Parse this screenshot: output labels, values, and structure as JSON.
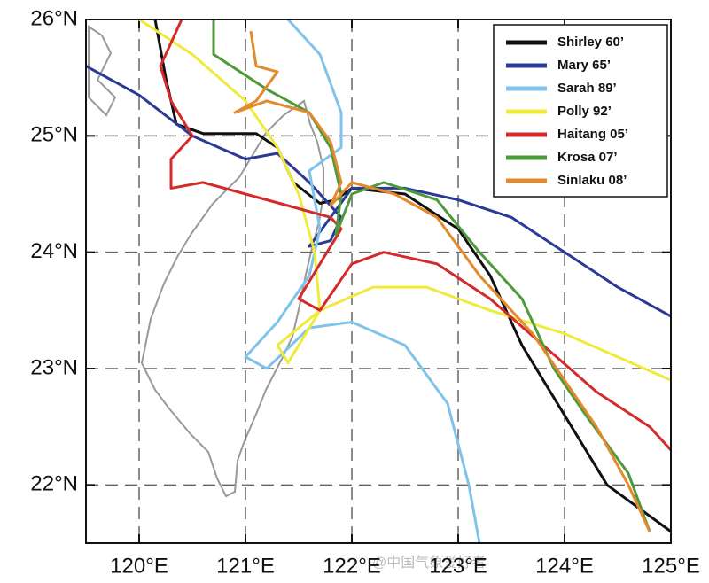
{
  "chart_data": {
    "type": "line",
    "xlim": [
      119.5,
      125
    ],
    "ylim": [
      21.5,
      26
    ],
    "xticks": [
      {
        "value": 120,
        "label": "120°E"
      },
      {
        "value": 121,
        "label": "121°E"
      },
      {
        "value": 122,
        "label": "122°E"
      },
      {
        "value": 123,
        "label": "123°E"
      },
      {
        "value": 124,
        "label": "124°E"
      },
      {
        "value": 125,
        "label": "125°E"
      }
    ],
    "yticks": [
      {
        "value": 22,
        "label": "22°N"
      },
      {
        "value": 23,
        "label": "23°N"
      },
      {
        "value": 24,
        "label": "24°N"
      },
      {
        "value": 25,
        "label": "25°N"
      },
      {
        "value": 26,
        "label": "26°N"
      }
    ],
    "grid": true,
    "legend": "upper right",
    "watermark": "@中国气象爱好者",
    "series": [
      {
        "name": "Shirley 60’",
        "color": "#111111",
        "x": [
          120.15,
          120.25,
          120.35,
          120.6,
          121.1,
          121.3,
          121.45,
          121.7,
          121.85,
          122.0,
          122.5,
          123.0,
          123.3,
          123.6,
          124.0,
          124.4,
          125.0
        ],
        "values": [
          26.0,
          25.5,
          25.1,
          25.02,
          25.02,
          24.9,
          24.6,
          24.42,
          24.45,
          24.55,
          24.5,
          24.2,
          23.8,
          23.2,
          22.6,
          22.0,
          21.6
        ]
      },
      {
        "name": "Mary 65’",
        "color": "#2b3a96",
        "x": [
          119.5,
          120.0,
          120.5,
          121.0,
          121.3,
          121.6,
          121.9,
          121.8,
          121.6,
          121.8,
          122.0,
          122.5,
          123.0,
          123.5,
          124.0,
          124.5,
          125.0
        ],
        "values": [
          25.6,
          25.35,
          25.0,
          24.8,
          24.85,
          24.6,
          24.3,
          24.1,
          24.05,
          24.3,
          24.55,
          24.55,
          24.45,
          24.3,
          24.0,
          23.7,
          23.45
        ]
      },
      {
        "name": "Sarah 89’",
        "color": "#7fc3ea",
        "x": [
          121.4,
          121.7,
          121.9,
          121.9,
          121.6,
          121.7,
          121.6,
          121.3,
          121.0,
          121.2,
          121.6,
          122.0,
          122.5,
          122.9,
          123.1,
          123.2
        ],
        "values": [
          26.0,
          25.7,
          25.2,
          24.9,
          24.7,
          24.2,
          23.8,
          23.4,
          23.1,
          23.0,
          23.35,
          23.4,
          23.2,
          22.7,
          22.0,
          21.5
        ]
      },
      {
        "name": "Polly 92’",
        "color": "#f0ea3a",
        "x": [
          120.0,
          120.5,
          121.0,
          121.3,
          121.5,
          121.65,
          121.7,
          121.5,
          121.4,
          121.3,
          121.7,
          122.2,
          122.7,
          123.3,
          124.0,
          124.5,
          125.0
        ],
        "values": [
          26.0,
          25.7,
          25.3,
          24.9,
          24.5,
          24.0,
          23.5,
          23.2,
          23.05,
          23.2,
          23.5,
          23.7,
          23.7,
          23.5,
          23.3,
          23.1,
          22.9
        ]
      },
      {
        "name": "Haitang 05’",
        "color": "#d42a2a",
        "x": [
          120.4,
          120.2,
          120.3,
          120.5,
          120.3,
          120.3,
          120.6,
          121.0,
          121.4,
          121.8,
          121.9,
          121.7,
          121.5,
          121.7,
          122.0,
          122.3,
          122.8,
          123.3,
          123.8,
          124.3,
          124.8,
          125.0
        ],
        "values": [
          26.0,
          25.6,
          25.3,
          25.0,
          24.8,
          24.55,
          24.6,
          24.5,
          24.4,
          24.3,
          24.2,
          23.9,
          23.6,
          23.5,
          23.9,
          24.0,
          23.9,
          23.6,
          23.2,
          22.8,
          22.5,
          22.3
        ]
      },
      {
        "name": "Krosa 07’",
        "color": "#4c9a3a",
        "x": [
          120.7,
          120.7,
          121.2,
          121.6,
          121.8,
          121.9,
          121.85,
          122.0,
          122.3,
          122.8,
          123.2,
          123.6,
          123.9,
          124.2,
          124.6,
          124.8
        ],
        "values": [
          26.0,
          25.7,
          25.4,
          25.2,
          24.9,
          24.5,
          24.15,
          24.5,
          24.6,
          24.45,
          24.0,
          23.6,
          23.0,
          22.6,
          22.1,
          21.6
        ]
      },
      {
        "name": "Sinlaku 08’",
        "color": "#e28a2c",
        "x": [
          121.05,
          121.1,
          121.3,
          121.1,
          120.9,
          121.2,
          121.6,
          121.8,
          121.9,
          121.8,
          122.0,
          122.4,
          122.8,
          123.2,
          123.7,
          124.0,
          124.3,
          124.6,
          124.8
        ],
        "values": [
          25.9,
          25.6,
          25.55,
          25.3,
          25.2,
          25.3,
          25.2,
          24.95,
          24.6,
          24.4,
          24.6,
          24.5,
          24.3,
          23.8,
          23.3,
          22.9,
          22.5,
          22.0,
          21.6
        ]
      }
    ]
  }
}
